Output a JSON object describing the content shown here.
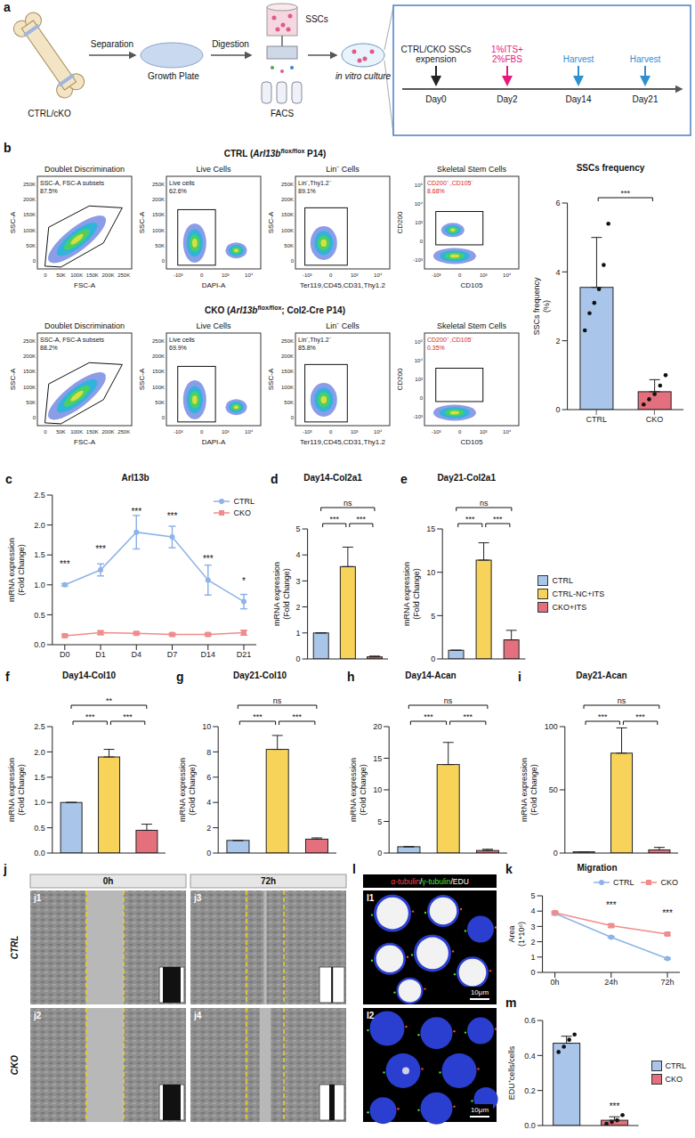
{
  "figure": {
    "a": {
      "letter": "a",
      "source": "CTRL/cKO",
      "separation": "Separation",
      "growth_plate": "Growth Plate",
      "digestion": "Digestion",
      "sscs": "SSCs",
      "facs": "FACS",
      "culture": "in vitro culture",
      "timeline": [
        {
          "label": "CTRL/CKO SSCs expension",
          "day": "Day0",
          "color": "#222222"
        },
        {
          "label": "1%ITS+ 2%FBS",
          "day": "Day2",
          "color": "#e6197d"
        },
        {
          "label": "Harvest",
          "day": "Day14",
          "color": "#2f8fd0"
        },
        {
          "label": "Harvest",
          "day": "Day21",
          "color": "#2f8fd0"
        }
      ]
    },
    "b": {
      "letter": "b",
      "plots": [
        {
          "title": "Doublet Discrimination",
          "gate": "SSC-A, FSC-A subsets",
          "x_label": "FSC-A",
          "y_label": "SSC-A",
          "x_ticks": [
            "0",
            "50K",
            "100K",
            "150K",
            "200K",
            "250K"
          ],
          "y_ticks": [
            "0",
            "50K",
            "100K",
            "150K",
            "200K",
            "250K"
          ]
        },
        {
          "title": "Live Cells",
          "gate": "Live cells",
          "x_label": "DAPI-A",
          "y_label": "SSC-A",
          "x_ticks": [
            "-10³",
            "0",
            "10³",
            "10⁴"
          ],
          "y_ticks": [
            "0",
            "50K",
            "100K",
            "150K",
            "200K",
            "250K"
          ]
        },
        {
          "title": "Lin⁻ Cells",
          "gate": "Lin⁻,Thy1.2⁻",
          "x_label": "Ter119,CD45,CD31,Thy1.2",
          "y_label": "SSC-A",
          "x_ticks": [
            "-10³",
            "0",
            "10³",
            "10⁴"
          ],
          "y_ticks": [
            "0",
            "50K",
            "100K",
            "150K",
            "200K",
            "250K"
          ]
        },
        {
          "title": "Skeletal Stem Cells",
          "gate": "CD200⁺ ,CD105⁻",
          "x_label": "CD105",
          "y_label": "CD200",
          "x_ticks": [
            "-10³",
            "0",
            "10³",
            "10⁴"
          ],
          "y_ticks": [
            "-10³",
            "0",
            "10³",
            "10⁴",
            "10⁵"
          ]
        }
      ],
      "samples": [
        {
          "label_parts": [
            "CTRL (",
            "Arl13b",
            "flox/flox",
            " P14)"
          ],
          "percents": [
            "87.5%",
            "62.6%",
            "89.1%",
            "8.68%"
          ]
        },
        {
          "label_parts": [
            "CKO (",
            "Arl13b",
            "flox/flox",
            "; Col2-Cre P14)"
          ],
          "percents": [
            "88.2%",
            "69.9%",
            "85.8%",
            "0.35%"
          ]
        }
      ]
    },
    "j": {
      "letter": "j",
      "columns": [
        "0h",
        "72h"
      ],
      "rows": [
        "CTRL",
        "CKO"
      ],
      "tiles": [
        [
          "j1",
          "j3"
        ],
        [
          "j2",
          "j4"
        ]
      ]
    },
    "l": {
      "letter": "l",
      "stain": "α-tubulin/γ-tubulin/EDU",
      "stain_colors": [
        "#ff4040",
        "#40e040",
        "#ffffff"
      ],
      "tiles": [
        "l1",
        "l2"
      ],
      "scale": "10μm"
    }
  },
  "chart_data": [
    {
      "type": "bar",
      "title": "SSCs frequency",
      "y_label": "SSCs frequency (%)",
      "categories": [
        "CTRL",
        "CKO"
      ],
      "values": [
        3.55,
        0.52
      ],
      "errors": [
        1.45,
        0.35
      ],
      "points": [
        [
          2.3,
          2.8,
          3.1,
          3.5,
          4.2,
          5.4
        ],
        [
          0.15,
          0.3,
          0.45,
          0.7,
          1.0
        ]
      ],
      "colors": [
        "#a9c6ea",
        "#e4707d"
      ],
      "ylim": [
        0,
        6
      ],
      "yticks": [
        0,
        2,
        4,
        6
      ],
      "annotations": [
        {
          "pair": [
            "CTRL",
            "CKO"
          ],
          "label": "***"
        }
      ]
    },
    {
      "panel": "c",
      "type": "line",
      "title": "Arl13b",
      "y_label": "mRNA expression (Fold Change)",
      "categories": [
        "D0",
        "D1",
        "D4",
        "D7",
        "D14",
        "D21"
      ],
      "series": [
        {
          "name": "CTRL",
          "color": "#8db3e8",
          "marker": "circle",
          "values": [
            1.0,
            1.25,
            1.88,
            1.8,
            1.08,
            0.72
          ],
          "errors": [
            0.02,
            0.1,
            0.28,
            0.18,
            0.25,
            0.12
          ],
          "annotations": [
            "***",
            "***",
            "***",
            "***",
            "***",
            "*"
          ]
        },
        {
          "name": "CKO",
          "color": "#f08c8c",
          "marker": "square",
          "values": [
            0.15,
            0.2,
            0.19,
            0.17,
            0.17,
            0.2
          ],
          "errors": [
            0.02,
            0.03,
            0.02,
            0.02,
            0.02,
            0.04
          ]
        }
      ],
      "ylim": [
        0,
        2.5
      ],
      "yticks": [
        {
          "value": 0,
          "label": "0.0"
        },
        0.5,
        {
          "value": 1,
          "label": "1.0"
        },
        1.5,
        {
          "value": 2,
          "label": "2.0"
        },
        2.5
      ],
      "legend": "top-right"
    },
    {
      "panel": "d",
      "type": "bar",
      "title": "Day14-Col2a1",
      "y_label": "mRNA expression (Fold Change)",
      "categories": [
        "CTRL",
        "CTRL-NC+ITS",
        "CKO+ITS"
      ],
      "values": [
        1,
        3.55,
        0.08
      ],
      "errors": [
        0,
        0.75,
        0.03
      ],
      "colors": [
        "#a9c6ea",
        "#f7d35a",
        "#e4707d"
      ],
      "ylim": [
        0,
        5
      ],
      "yticks": [
        0,
        1,
        2,
        3,
        4,
        5
      ],
      "tick_labels": "y",
      "annotations": [
        {
          "pair": [
            "CTRL",
            "CKO+ITS"
          ],
          "label": "ns"
        },
        {
          "pair": [
            "CTRL",
            "CTRL-NC+ITS"
          ],
          "label": "***"
        },
        {
          "pair": [
            "CTRL-NC+ITS",
            "CKO+ITS"
          ],
          "label": "***"
        }
      ]
    },
    {
      "panel": "e",
      "type": "bar",
      "title": "Day21-Col2a1",
      "y_label": "mRNA expression (Fold Change)",
      "categories": [
        "CTRL",
        "CTRL-NC+ITS",
        "CKO+ITS"
      ],
      "values": [
        1,
        11.4,
        2.2
      ],
      "errors": [
        0,
        2.0,
        1.1
      ],
      "colors": [
        "#a9c6ea",
        "#f7d35a",
        "#e4707d"
      ],
      "ylim": [
        0,
        15
      ],
      "yticks": [
        0,
        5,
        10,
        15
      ],
      "tick_labels": "y",
      "legend": "right",
      "annotations": [
        {
          "pair": [
            "CTRL",
            "CKO+ITS"
          ],
          "label": "ns"
        },
        {
          "pair": [
            "CTRL",
            "CTRL-NC+ITS"
          ],
          "label": "***"
        },
        {
          "pair": [
            "CTRL-NC+ITS",
            "CKO+ITS"
          ],
          "label": "***"
        }
      ]
    },
    {
      "panel": "f",
      "type": "bar",
      "title": "Day14-Col10",
      "y_label": "mRNA expression (Fold Change)",
      "categories": [
        "CTRL",
        "CTRL-NC+ITS",
        "CKO+ITS"
      ],
      "values": [
        1,
        1.9,
        0.45
      ],
      "errors": [
        0,
        0.15,
        0.12
      ],
      "colors": [
        "#a9c6ea",
        "#f7d35a",
        "#e4707d"
      ],
      "ylim": [
        0,
        2.5
      ],
      "yticks": [
        {
          "value": 0,
          "label": "0.0"
        },
        0.5,
        {
          "value": 1,
          "label": "1.0"
        },
        1.5,
        {
          "value": 2,
          "label": "2.0"
        },
        2.5
      ],
      "tick_labels": "y",
      "annotations": [
        {
          "pair": [
            "CTRL",
            "CKO+ITS"
          ],
          "label": "**"
        },
        {
          "pair": [
            "CTRL",
            "CTRL-NC+ITS"
          ],
          "label": "***"
        },
        {
          "pair": [
            "CTRL-NC+ITS",
            "CKO+ITS"
          ],
          "label": "***"
        }
      ]
    },
    {
      "panel": "g",
      "type": "bar",
      "title": "Day21-Col10",
      "y_label": "mRNA expression (Fold Change)",
      "categories": [
        "CTRL",
        "CTRL-NC+ITS",
        "CKO+ITS"
      ],
      "values": [
        1,
        8.2,
        1.1
      ],
      "errors": [
        0,
        1.1,
        0.1
      ],
      "colors": [
        "#a9c6ea",
        "#f7d35a",
        "#e4707d"
      ],
      "ylim": [
        0,
        10
      ],
      "yticks": [
        0,
        2,
        4,
        6,
        8,
        10
      ],
      "tick_labels": "y",
      "annotations": [
        {
          "pair": [
            "CTRL",
            "CKO+ITS"
          ],
          "label": "ns"
        },
        {
          "pair": [
            "CTRL",
            "CTRL-NC+ITS"
          ],
          "label": "***"
        },
        {
          "pair": [
            "CTRL-NC+ITS",
            "CKO+ITS"
          ],
          "label": "***"
        }
      ]
    },
    {
      "panel": "h",
      "type": "bar",
      "title": "Day14-Acan",
      "y_label": "mRNA expression (Fold Change)",
      "categories": [
        "CTRL",
        "CTRL-NC+ITS",
        "CKO+ITS"
      ],
      "values": [
        1,
        14,
        0.4
      ],
      "errors": [
        0,
        3.5,
        0.2
      ],
      "colors": [
        "#a9c6ea",
        "#f7d35a",
        "#e4707d"
      ],
      "ylim": [
        0,
        20
      ],
      "yticks": [
        0,
        5,
        10,
        15,
        20
      ],
      "tick_labels": "y",
      "annotations": [
        {
          "pair": [
            "CTRL",
            "CKO+ITS"
          ],
          "label": "ns"
        },
        {
          "pair": [
            "CTRL",
            "CTRL-NC+ITS"
          ],
          "label": "***"
        },
        {
          "pair": [
            "CTRL-NC+ITS",
            "CKO+ITS"
          ],
          "label": "***"
        }
      ]
    },
    {
      "panel": "i",
      "type": "bar",
      "title": "Day21-Acan",
      "y_label": "mRNA expression (Fold Change)",
      "categories": [
        "CTRL",
        "CTRL-NC+ITS",
        "CKO+ITS"
      ],
      "values": [
        1,
        79,
        2.5
      ],
      "errors": [
        0,
        20,
        2
      ],
      "colors": [
        "#a9c6ea",
        "#f7d35a",
        "#e4707d"
      ],
      "ylim": [
        0,
        100
      ],
      "yticks": [
        0,
        50,
        100
      ],
      "tick_labels": "y",
      "annotations": [
        {
          "pair": [
            "CTRL",
            "CKO+ITS"
          ],
          "label": "ns"
        },
        {
          "pair": [
            "CTRL",
            "CTRL-NC+ITS"
          ],
          "label": "***"
        },
        {
          "pair": [
            "CTRL-NC+ITS",
            "CKO+ITS"
          ],
          "label": "***"
        }
      ]
    },
    {
      "panel": "k",
      "type": "line",
      "title": "Migration",
      "y_label": "Area (1*10⁶)",
      "categories": [
        "0h",
        "24h",
        "72h"
      ],
      "series": [
        {
          "name": "CTRL",
          "color": "#8db3e8",
          "marker": "circle",
          "values": [
            3.85,
            2.3,
            0.9
          ],
          "errors": [
            0.1,
            0.05,
            0.05
          ]
        },
        {
          "name": "CKO",
          "color": "#f08c8c",
          "marker": "square",
          "values": [
            3.9,
            3.05,
            2.5
          ],
          "errors": [
            0.05,
            0.1,
            0.08
          ],
          "annotations": [
            null,
            "***",
            "***"
          ]
        }
      ],
      "ylim": [
        0,
        5
      ],
      "yticks": [
        0,
        1,
        2,
        3,
        4,
        5
      ],
      "legend": "top"
    },
    {
      "panel": "m",
      "type": "bar",
      "y_label": "EDU⁺cells/cells",
      "categories": [
        "CTRL",
        "CKO"
      ],
      "values": [
        0.47,
        0.03
      ],
      "errors": [
        0.04,
        0.02
      ],
      "points": [
        [
          0.42,
          0.45,
          0.49,
          0.52
        ],
        [
          0.01,
          0.02,
          0.03,
          0.06
        ]
      ],
      "colors": [
        "#a9c6ea",
        "#e4707d"
      ],
      "ylim": [
        0,
        0.6
      ],
      "yticks": [
        {
          "value": 0,
          "label": "0.0"
        },
        0.2,
        0.4,
        0.6
      ],
      "tick_labels": "y",
      "legend": "right",
      "annotations": [
        {
          "category": "CKO",
          "label": "***"
        }
      ]
    }
  ]
}
